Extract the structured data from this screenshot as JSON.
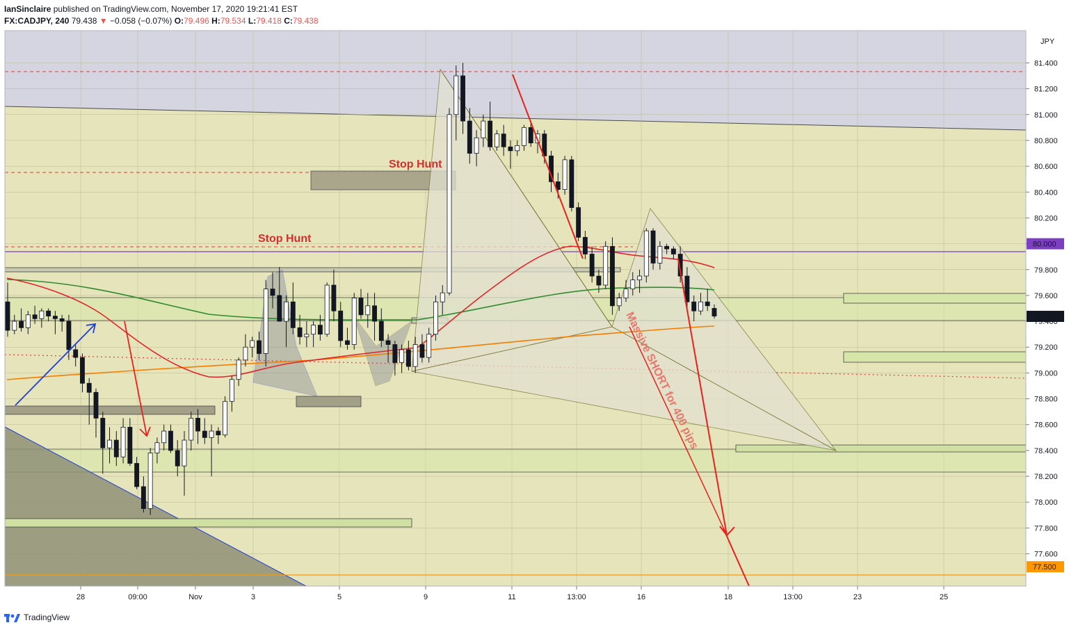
{
  "header": {
    "author": "IanSinclaire",
    "published": "published on TradingView.com, November 17, 2020 19:21:41 EST",
    "symbol": "FX:CADJPY, 240",
    "last": "79.438",
    "change_arrow": "▼",
    "change": "−0.058 (−0.07%)",
    "o_label": "O:",
    "o_value": "79.496",
    "h_label": "H:",
    "h_value": "79.534",
    "l_label": "L:",
    "l_value": "79.418",
    "c_label": "C:",
    "c_value": "79.438"
  },
  "footer": {
    "brand": "TradingView"
  },
  "annotations": {
    "stop_hunt_1": "Stop Hunt",
    "stop_hunt_2": "Stop Hunt",
    "short_text": "Massive SHORT for 400 pips"
  },
  "colors": {
    "up_candle": "#ffffff",
    "down_candle": "#131722",
    "ma_red": "#e0242a",
    "ma_green": "#2e8b2e",
    "ma_orange": "#f57c00",
    "zone_fill": "#e3e1b0",
    "grey_zone": "#d2d3de",
    "arrow_red": "#e8211e",
    "arrow_blue": "#1f3fd6",
    "accent_purple": "#7b3fbf"
  },
  "chart_data": {
    "type": "candlestick",
    "currency": "JPY",
    "ylim": [
      77.35,
      81.65
    ],
    "y_ticks": [
      "81.400",
      "81.200",
      "81.000",
      "80.800",
      "80.600",
      "80.400",
      "80.200",
      "80.000",
      "79.800",
      "79.600",
      "79.400",
      "79.200",
      "79.000",
      "78.800",
      "78.600",
      "78.400",
      "78.200",
      "78.000",
      "77.800",
      "77.600"
    ],
    "x_tick_labels": [
      "28",
      "09:00",
      "Nov",
      "3",
      "5",
      "9",
      "11",
      "13:00",
      "16",
      "18",
      "13:00",
      "23",
      "25"
    ],
    "price_badges": [
      {
        "label": "80.000",
        "value": 80.0,
        "color": "#7b3fbf"
      },
      {
        "label": "79.438",
        "value": 79.438,
        "color": "#131722"
      },
      {
        "label": "77.500",
        "value": 77.5,
        "color": "#ff9800"
      }
    ],
    "candles": [
      [
        79.55,
        79.7,
        79.28,
        79.33
      ],
      [
        79.33,
        79.45,
        79.3,
        79.4
      ],
      [
        79.4,
        79.5,
        79.32,
        79.35
      ],
      [
        79.35,
        79.48,
        79.3,
        79.45
      ],
      [
        79.45,
        79.52,
        79.38,
        79.42
      ],
      [
        79.42,
        79.5,
        79.35,
        79.48
      ],
      [
        79.48,
        79.5,
        79.4,
        79.44
      ],
      [
        79.44,
        79.48,
        79.3,
        79.42
      ],
      [
        79.42,
        79.45,
        79.32,
        79.4
      ],
      [
        79.4,
        79.45,
        79.1,
        79.18
      ],
      [
        79.18,
        79.22,
        79.05,
        79.12
      ],
      [
        79.12,
        79.15,
        78.85,
        78.92
      ],
      [
        78.92,
        78.96,
        78.6,
        78.85
      ],
      [
        78.85,
        78.88,
        78.5,
        78.65
      ],
      [
        78.65,
        78.7,
        78.22,
        78.42
      ],
      [
        78.42,
        78.58,
        78.3,
        78.48
      ],
      [
        78.48,
        78.55,
        78.28,
        78.35
      ],
      [
        78.35,
        78.65,
        78.3,
        78.58
      ],
      [
        78.58,
        78.65,
        78.28,
        78.3
      ],
      [
        78.3,
        78.35,
        78.1,
        78.12
      ],
      [
        78.12,
        78.2,
        77.92,
        77.95
      ],
      [
        77.95,
        78.42,
        77.9,
        78.38
      ],
      [
        78.38,
        78.5,
        78.3,
        78.46
      ],
      [
        78.46,
        78.6,
        78.4,
        78.55
      ],
      [
        78.55,
        78.6,
        78.38,
        78.4
      ],
      [
        78.4,
        78.48,
        78.2,
        78.28
      ],
      [
        78.28,
        78.55,
        78.05,
        78.48
      ],
      [
        78.48,
        78.7,
        78.4,
        78.65
      ],
      [
        78.65,
        78.72,
        78.45,
        78.55
      ],
      [
        78.55,
        78.65,
        78.45,
        78.5
      ],
      [
        78.5,
        78.6,
        78.2,
        78.55
      ],
      [
        78.55,
        78.58,
        78.45,
        78.52
      ],
      [
        78.52,
        78.82,
        78.5,
        78.78
      ],
      [
        78.78,
        78.98,
        78.7,
        78.95
      ],
      [
        78.95,
        79.12,
        78.9,
        79.1
      ],
      [
        79.1,
        79.3,
        79.05,
        79.2
      ],
      [
        79.2,
        79.28,
        79.12,
        79.25
      ],
      [
        79.25,
        79.32,
        79.1,
        79.15
      ],
      [
        79.15,
        79.72,
        79.05,
        79.65
      ],
      [
        79.65,
        79.78,
        79.5,
        79.6
      ],
      [
        79.6,
        79.82,
        79.4,
        79.4
      ],
      [
        79.4,
        79.6,
        79.2,
        79.55
      ],
      [
        79.55,
        79.7,
        79.3,
        79.35
      ],
      [
        79.35,
        79.45,
        79.22,
        79.28
      ],
      [
        79.28,
        79.4,
        79.2,
        79.3
      ],
      [
        79.3,
        79.4,
        79.2,
        79.37
      ],
      [
        79.37,
        79.45,
        79.25,
        79.3
      ],
      [
        79.3,
        79.7,
        79.28,
        79.68
      ],
      [
        79.68,
        79.8,
        79.4,
        79.48
      ],
      [
        79.48,
        79.55,
        79.2,
        79.25
      ],
      [
        79.25,
        79.35,
        79.18,
        79.22
      ],
      [
        79.22,
        79.62,
        79.18,
        79.58
      ],
      [
        79.58,
        79.65,
        79.42,
        79.45
      ],
      [
        79.45,
        79.62,
        79.35,
        79.52
      ],
      [
        79.52,
        79.62,
        79.25,
        79.4
      ],
      [
        79.4,
        79.5,
        79.2,
        79.25
      ],
      [
        79.25,
        79.3,
        79.08,
        79.22
      ],
      [
        79.22,
        79.25,
        78.98,
        79.08
      ],
      [
        79.08,
        79.22,
        79.0,
        79.18
      ],
      [
        79.18,
        79.25,
        79.02,
        79.05
      ],
      [
        79.05,
        79.28,
        79.0,
        79.22
      ],
      [
        79.22,
        79.3,
        79.08,
        79.12
      ],
      [
        79.12,
        79.35,
        79.08,
        79.3
      ],
      [
        79.3,
        79.6,
        79.25,
        79.55
      ],
      [
        79.55,
        79.68,
        79.45,
        79.62
      ],
      [
        79.62,
        81.05,
        79.6,
        81.0
      ],
      [
        81.0,
        81.38,
        80.8,
        81.3
      ],
      [
        81.3,
        81.4,
        80.85,
        80.95
      ],
      [
        80.95,
        81.05,
        80.62,
        80.7
      ],
      [
        80.7,
        80.88,
        80.6,
        80.82
      ],
      [
        80.82,
        81.0,
        80.75,
        80.95
      ],
      [
        80.95,
        81.1,
        80.72,
        80.75
      ],
      [
        80.75,
        80.88,
        80.72,
        80.85
      ],
      [
        80.85,
        80.92,
        80.68,
        80.75
      ],
      [
        80.75,
        80.8,
        80.58,
        80.72
      ],
      [
        80.72,
        80.8,
        80.68,
        80.76
      ],
      [
        80.76,
        80.92,
        80.72,
        80.9
      ],
      [
        80.9,
        80.95,
        80.75,
        80.78
      ],
      [
        80.78,
        80.88,
        80.7,
        80.85
      ],
      [
        80.85,
        80.88,
        80.62,
        80.68
      ],
      [
        80.68,
        80.72,
        80.4,
        80.48
      ],
      [
        80.48,
        80.55,
        80.35,
        80.42
      ],
      [
        80.42,
        80.68,
        80.38,
        80.65
      ],
      [
        80.65,
        80.68,
        80.25,
        80.28
      ],
      [
        80.28,
        80.32,
        80.02,
        80.05
      ],
      [
        80.05,
        80.1,
        79.88,
        79.92
      ],
      [
        79.92,
        79.98,
        79.7,
        79.75
      ],
      [
        79.75,
        79.8,
        79.62,
        79.68
      ],
      [
        79.68,
        80.02,
        79.65,
        79.98
      ],
      [
        79.98,
        80.05,
        79.45,
        79.52
      ],
      [
        79.52,
        79.62,
        79.48,
        79.58
      ],
      [
        79.58,
        79.72,
        79.55,
        79.65
      ],
      [
        79.65,
        79.78,
        79.6,
        79.72
      ],
      [
        79.72,
        79.8,
        79.62,
        79.75
      ],
      [
        79.75,
        80.12,
        79.7,
        80.1
      ],
      [
        80.1,
        80.12,
        79.8,
        79.85
      ],
      [
        79.85,
        80.02,
        79.8,
        79.98
      ],
      [
        79.98,
        80.0,
        79.92,
        79.96
      ],
      [
        79.96,
        79.98,
        79.88,
        79.92
      ],
      [
        79.92,
        79.98,
        79.7,
        79.75
      ],
      [
        79.75,
        79.82,
        79.48,
        79.55
      ],
      [
        79.55,
        79.6,
        79.4,
        79.48
      ],
      [
        79.48,
        79.62,
        79.45,
        79.55
      ],
      [
        79.55,
        79.65,
        79.48,
        79.52
      ],
      [
        79.5,
        79.53,
        79.42,
        79.44
      ]
    ],
    "moving_averages": [
      {
        "name": "",
        "color": "#e0242a",
        "start_value": 79.82
      },
      {
        "name": "",
        "color": "#2e8b2e",
        "start_value": 79.8
      },
      {
        "name": "",
        "color": "#f57c00",
        "start_value": 79.02
      }
    ],
    "horizontal_levels": [
      81.42,
      80.62,
      80.05,
      80.0,
      77.5
    ]
  }
}
